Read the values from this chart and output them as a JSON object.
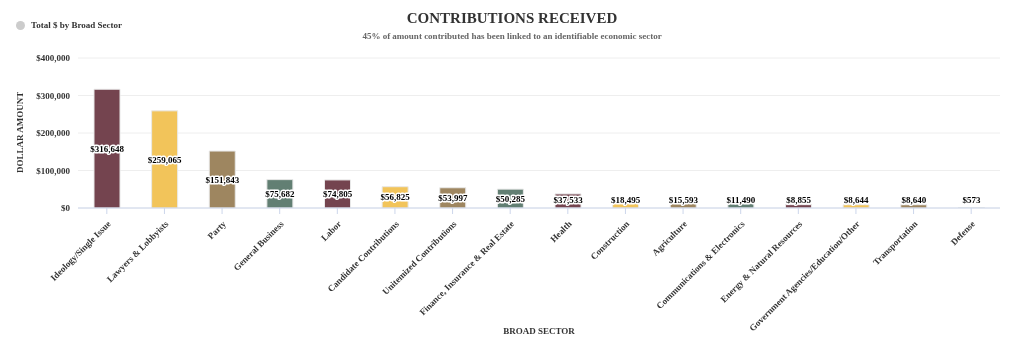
{
  "chart_data": {
    "type": "bar",
    "title": "CONTRIBUTIONS RECEIVED",
    "subtitle": "45% of amount contributed has been linked to an identifiable economic sector",
    "xlabel": "BROAD SECTOR",
    "ylabel": "DOLLAR AMOUNT",
    "categories": [
      "Ideology/Single Issue",
      "Lawyers & Lobbyists",
      "Party",
      "General Business",
      "Labor",
      "Candidate Contributions",
      "Unitemized Contributions",
      "Finance, Insurance & Real Estate",
      "Health",
      "Construction",
      "Agriculture",
      "Communications & Electronics",
      "Energy & Natural Resources",
      "Government Agencies/Education/Other",
      "Transportation",
      "Defense"
    ],
    "series": [
      {
        "name": "Total $ by Broad Sector",
        "values": [
          316648,
          259065,
          151843,
          75682,
          74805,
          56825,
          53997,
          50285,
          37533,
          18495,
          15593,
          11490,
          8855,
          8644,
          8640,
          573
        ],
        "colors": [
          "#74444f",
          "#f2c45a",
          "#9e8660",
          "#627f73",
          "#74444f",
          "#f2c45a",
          "#9e8660",
          "#627f73",
          "#74444f",
          "#f2c45a",
          "#9e8660",
          "#627f73",
          "#74444f",
          "#f2c45a",
          "#9e8660",
          "#627f73"
        ],
        "value_labels": [
          "$316,648",
          "$259,065",
          "$151,843",
          "$75,682",
          "$74,805",
          "$56,825",
          "$53,997",
          "$50,285",
          "$37,533",
          "$18,495",
          "$15,593",
          "$11,490",
          "$8,855",
          "$8,644",
          "$8,640",
          "$573"
        ]
      }
    ],
    "ylim": [
      0,
      400000
    ],
    "yticks": [
      {
        "value": 0,
        "label": "$0"
      },
      {
        "value": 100000,
        "label": "$100,000"
      },
      {
        "value": 200000,
        "label": "$200,000"
      },
      {
        "value": 300000,
        "label": "$300,000"
      },
      {
        "value": 400000,
        "label": "$400,000"
      }
    ],
    "grid": "y",
    "legend": "top left"
  }
}
